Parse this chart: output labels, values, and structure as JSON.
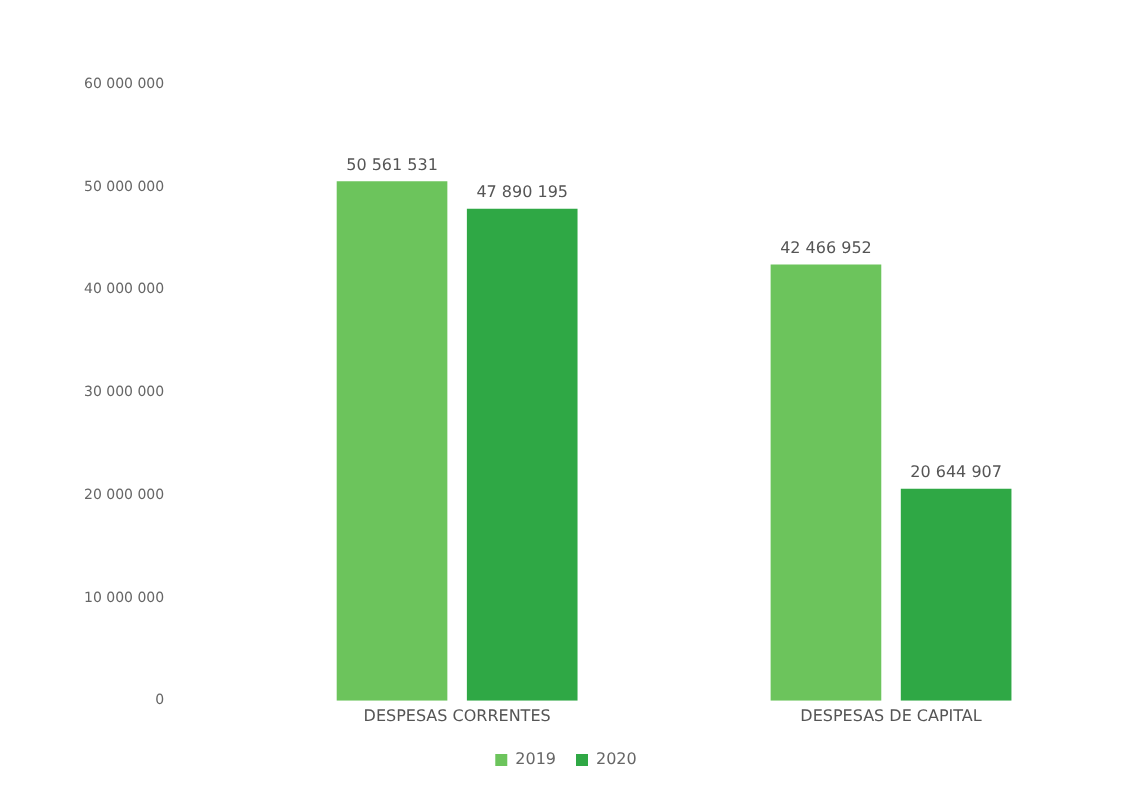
{
  "chart_data": {
    "type": "bar",
    "categories": [
      "DESPESAS CORRENTES",
      "DESPESAS DE CAPITAL"
    ],
    "series": [
      {
        "name": "2019",
        "color": "#6cc45c",
        "values": [
          50561531,
          42466952
        ],
        "value_labels": [
          "50 561 531",
          "42 466 952"
        ]
      },
      {
        "name": "2020",
        "color": "#2fa845",
        "values": [
          47890195,
          20644907
        ],
        "value_labels": [
          "47 890 195",
          "20 644 907"
        ]
      }
    ],
    "ylim": [
      0,
      60000000
    ],
    "yticks": [
      {
        "value": 0,
        "label": "0"
      },
      {
        "value": 10000000,
        "label": "10 000 000"
      },
      {
        "value": 20000000,
        "label": "20 000 000"
      },
      {
        "value": 30000000,
        "label": "30 000 000"
      },
      {
        "value": 40000000,
        "label": "40 000 000"
      },
      {
        "value": 50000000,
        "label": "50 000 000"
      },
      {
        "value": 60000000,
        "label": "60 000 000"
      }
    ],
    "grid": false,
    "legend": "bottom"
  }
}
